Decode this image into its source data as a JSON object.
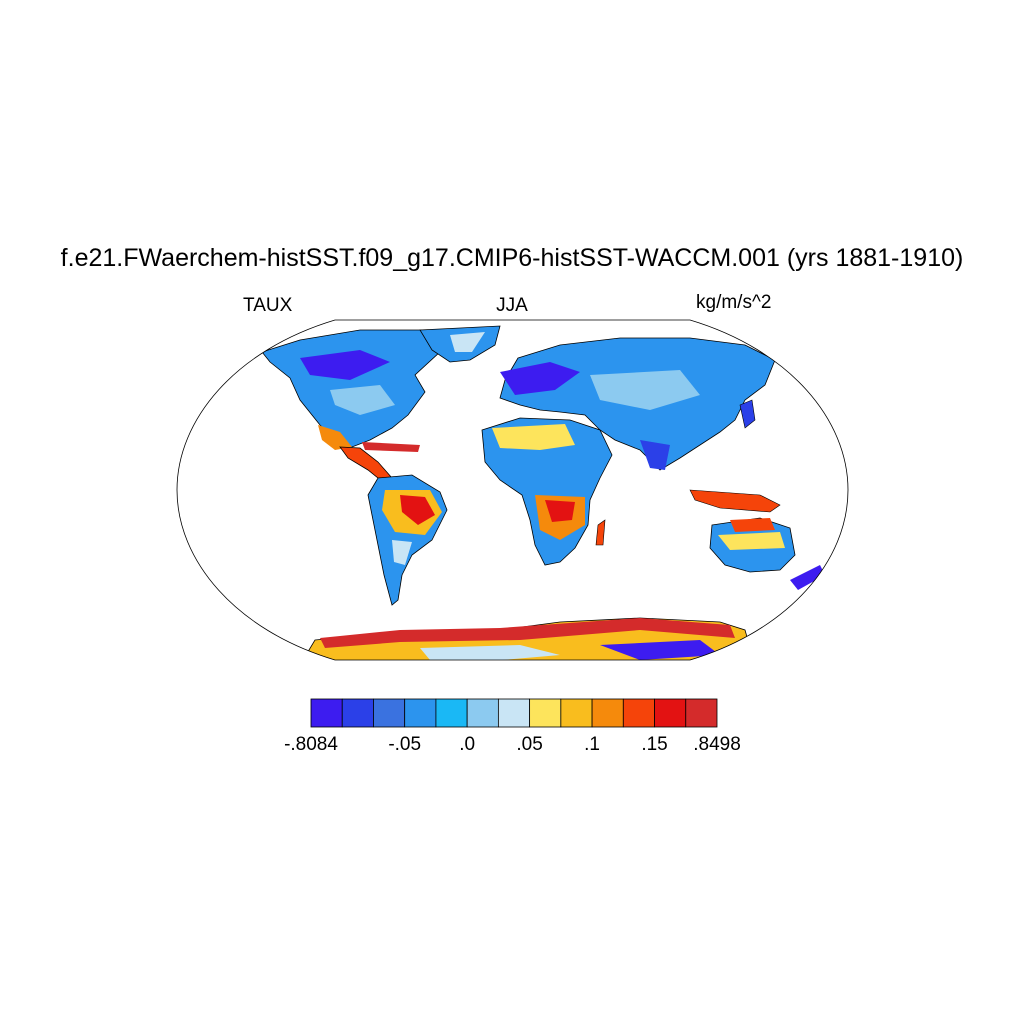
{
  "title": "f.e21.FWaerchem-histSST.f09_g17.CMIP6-histSST-WACCM.001 (yrs 1881-1910)",
  "left_label": "TAUX",
  "center_label": "JJA",
  "right_label": "kg/m/s^2",
  "colorbar": {
    "colors": [
      "#3d1cf0",
      "#2b40e8",
      "#3a72e0",
      "#2c94ee",
      "#1ab8f5",
      "#8ccaf0",
      "#c9e5f5",
      "#fde45c",
      "#f9bd1e",
      "#f58a0c",
      "#f5440a",
      "#e31212",
      "#d42b2b"
    ],
    "tick_labels": [
      {
        "text": "-.8084",
        "edge": 0
      },
      {
        "text": "-.05",
        "edge": 3
      },
      {
        "text": ".0",
        "edge": 5
      },
      {
        "text": ".05",
        "edge": 7
      },
      {
        "text": ".1",
        "edge": 9
      },
      {
        "text": ".15",
        "edge": 11
      },
      {
        "text": ".8498",
        "edge": 13
      }
    ]
  }
}
